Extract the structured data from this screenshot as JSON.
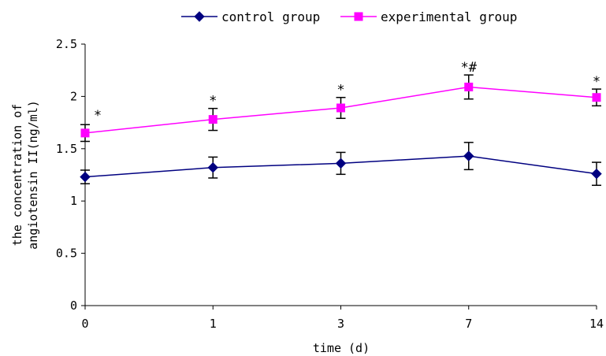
{
  "chart_data": {
    "type": "line",
    "title": "",
    "xlabel": "time (d)",
    "ylabel_lines": [
      "the concentration of",
      "angiotensin II(ng/ml)"
    ],
    "categories": [
      "0",
      "1",
      "3",
      "7",
      "14"
    ],
    "ylim": [
      0,
      2.5
    ],
    "yticks": [
      "0",
      "0.5",
      "1",
      "1.5",
      "2",
      "2.5"
    ],
    "grid": false,
    "legend_position": "top",
    "series": [
      {
        "name": "control group",
        "color": "#000080",
        "marker": "diamond",
        "values": [
          1.23,
          1.32,
          1.36,
          1.43,
          1.26
        ],
        "errors": [
          0.065,
          0.1,
          0.105,
          0.13,
          0.11
        ],
        "annotations": [
          "",
          "",
          "",
          "",
          ""
        ]
      },
      {
        "name": "experimental group",
        "color": "#ff00ff",
        "marker": "square",
        "values": [
          1.65,
          1.78,
          1.89,
          2.09,
          1.99
        ],
        "errors": [
          0.08,
          0.105,
          0.1,
          0.115,
          0.08
        ],
        "annotations": [
          "*",
          "*",
          "*",
          "*#",
          "*"
        ]
      }
    ]
  }
}
